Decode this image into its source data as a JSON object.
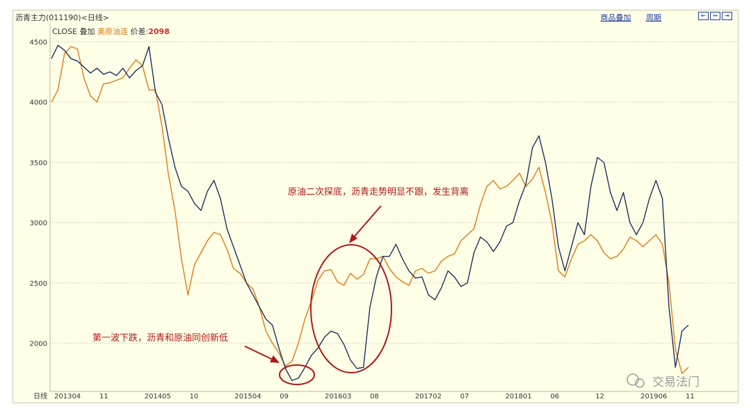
{
  "window": {
    "title": "沥青主力(011190)<日线>",
    "links": [
      "商品叠加",
      "周期"
    ],
    "zoom_icons": [
      "zoom-out-icon",
      "reset-icon",
      "zoom-in-icon"
    ]
  },
  "legend": {
    "series_label": "CLOSE",
    "overlay_label": "叠加",
    "overlay_name": "美原油连",
    "spread_label": "价差:",
    "spread_value": "2098"
  },
  "watermark": "交易法门",
  "chart_data": {
    "type": "line",
    "x_label": "日线",
    "x_ticks": [
      "201304",
      "11",
      "201405",
      "10",
      "201504",
      "09",
      "201603",
      "08",
      "201702",
      "07",
      "201801",
      "06",
      "12",
      "201906",
      "11"
    ],
    "y_ticks": [
      2000,
      2500,
      3000,
      3500,
      4000,
      4500
    ],
    "ylim": [
      1600,
      4650
    ],
    "grid": "horizontal-dotted",
    "colors": {
      "asphalt": "#1f2f5a",
      "crude": "#e07a10",
      "annotation": "#b01818"
    },
    "series": [
      {
        "name": "CLOSE",
        "values": [
          4360,
          4470,
          4430,
          4360,
          4340,
          4290,
          4240,
          4280,
          4230,
          4250,
          4220,
          4280,
          4200,
          4260,
          4300,
          4460,
          4080,
          3980,
          3700,
          3460,
          3300,
          3260,
          3160,
          3100,
          3260,
          3350,
          3200,
          2950,
          2800,
          2650,
          2500,
          2400,
          2300,
          2200,
          2150,
          1960,
          1790,
          1690,
          1710,
          1800,
          1900,
          1960,
          2050,
          2100,
          2080,
          1990,
          1860,
          1790,
          1800,
          2300,
          2550,
          2720,
          2720,
          2820,
          2700,
          2600,
          2540,
          2550,
          2400,
          2360,
          2460,
          2600,
          2550,
          2470,
          2500,
          2750,
          2880,
          2840,
          2760,
          2840,
          2970,
          3000,
          3180,
          3320,
          3620,
          3720,
          3500,
          3200,
          2800,
          2600,
          2800,
          3000,
          2900,
          3300,
          3540,
          3500,
          3250,
          3100,
          3250,
          3000,
          2900,
          3000,
          3200,
          3350,
          3200,
          2300,
          1800,
          2100,
          2150
        ]
      },
      {
        "name": "美原油连",
        "values": [
          4000,
          4100,
          4400,
          4460,
          4440,
          4200,
          4050,
          4000,
          4150,
          4160,
          4180,
          4200,
          4280,
          4350,
          4300,
          4100,
          4100,
          3800,
          3400,
          3100,
          2700,
          2400,
          2650,
          2750,
          2850,
          2920,
          2900,
          2780,
          2620,
          2580,
          2500,
          2450,
          2300,
          2100,
          2000,
          1920,
          1810,
          1850,
          2000,
          2200,
          2350,
          2520,
          2600,
          2610,
          2510,
          2480,
          2580,
          2530,
          2570,
          2700,
          2700,
          2720,
          2620,
          2550,
          2510,
          2480,
          2600,
          2620,
          2580,
          2600,
          2680,
          2720,
          2740,
          2850,
          2900,
          2950,
          3150,
          3300,
          3350,
          3280,
          3300,
          3350,
          3410,
          3300,
          3360,
          3460,
          3250,
          3000,
          2600,
          2550,
          2700,
          2820,
          2850,
          2900,
          2850,
          2750,
          2700,
          2720,
          2780,
          2880,
          2850,
          2800,
          2850,
          2900,
          2820,
          2500,
          1950,
          1750,
          1800
        ]
      }
    ],
    "annotations": [
      {
        "text": "原油二次探底，沥青走势明显不跟，发生背离"
      },
      {
        "text": "第一波下跌，沥青和原油同创新低"
      }
    ]
  }
}
